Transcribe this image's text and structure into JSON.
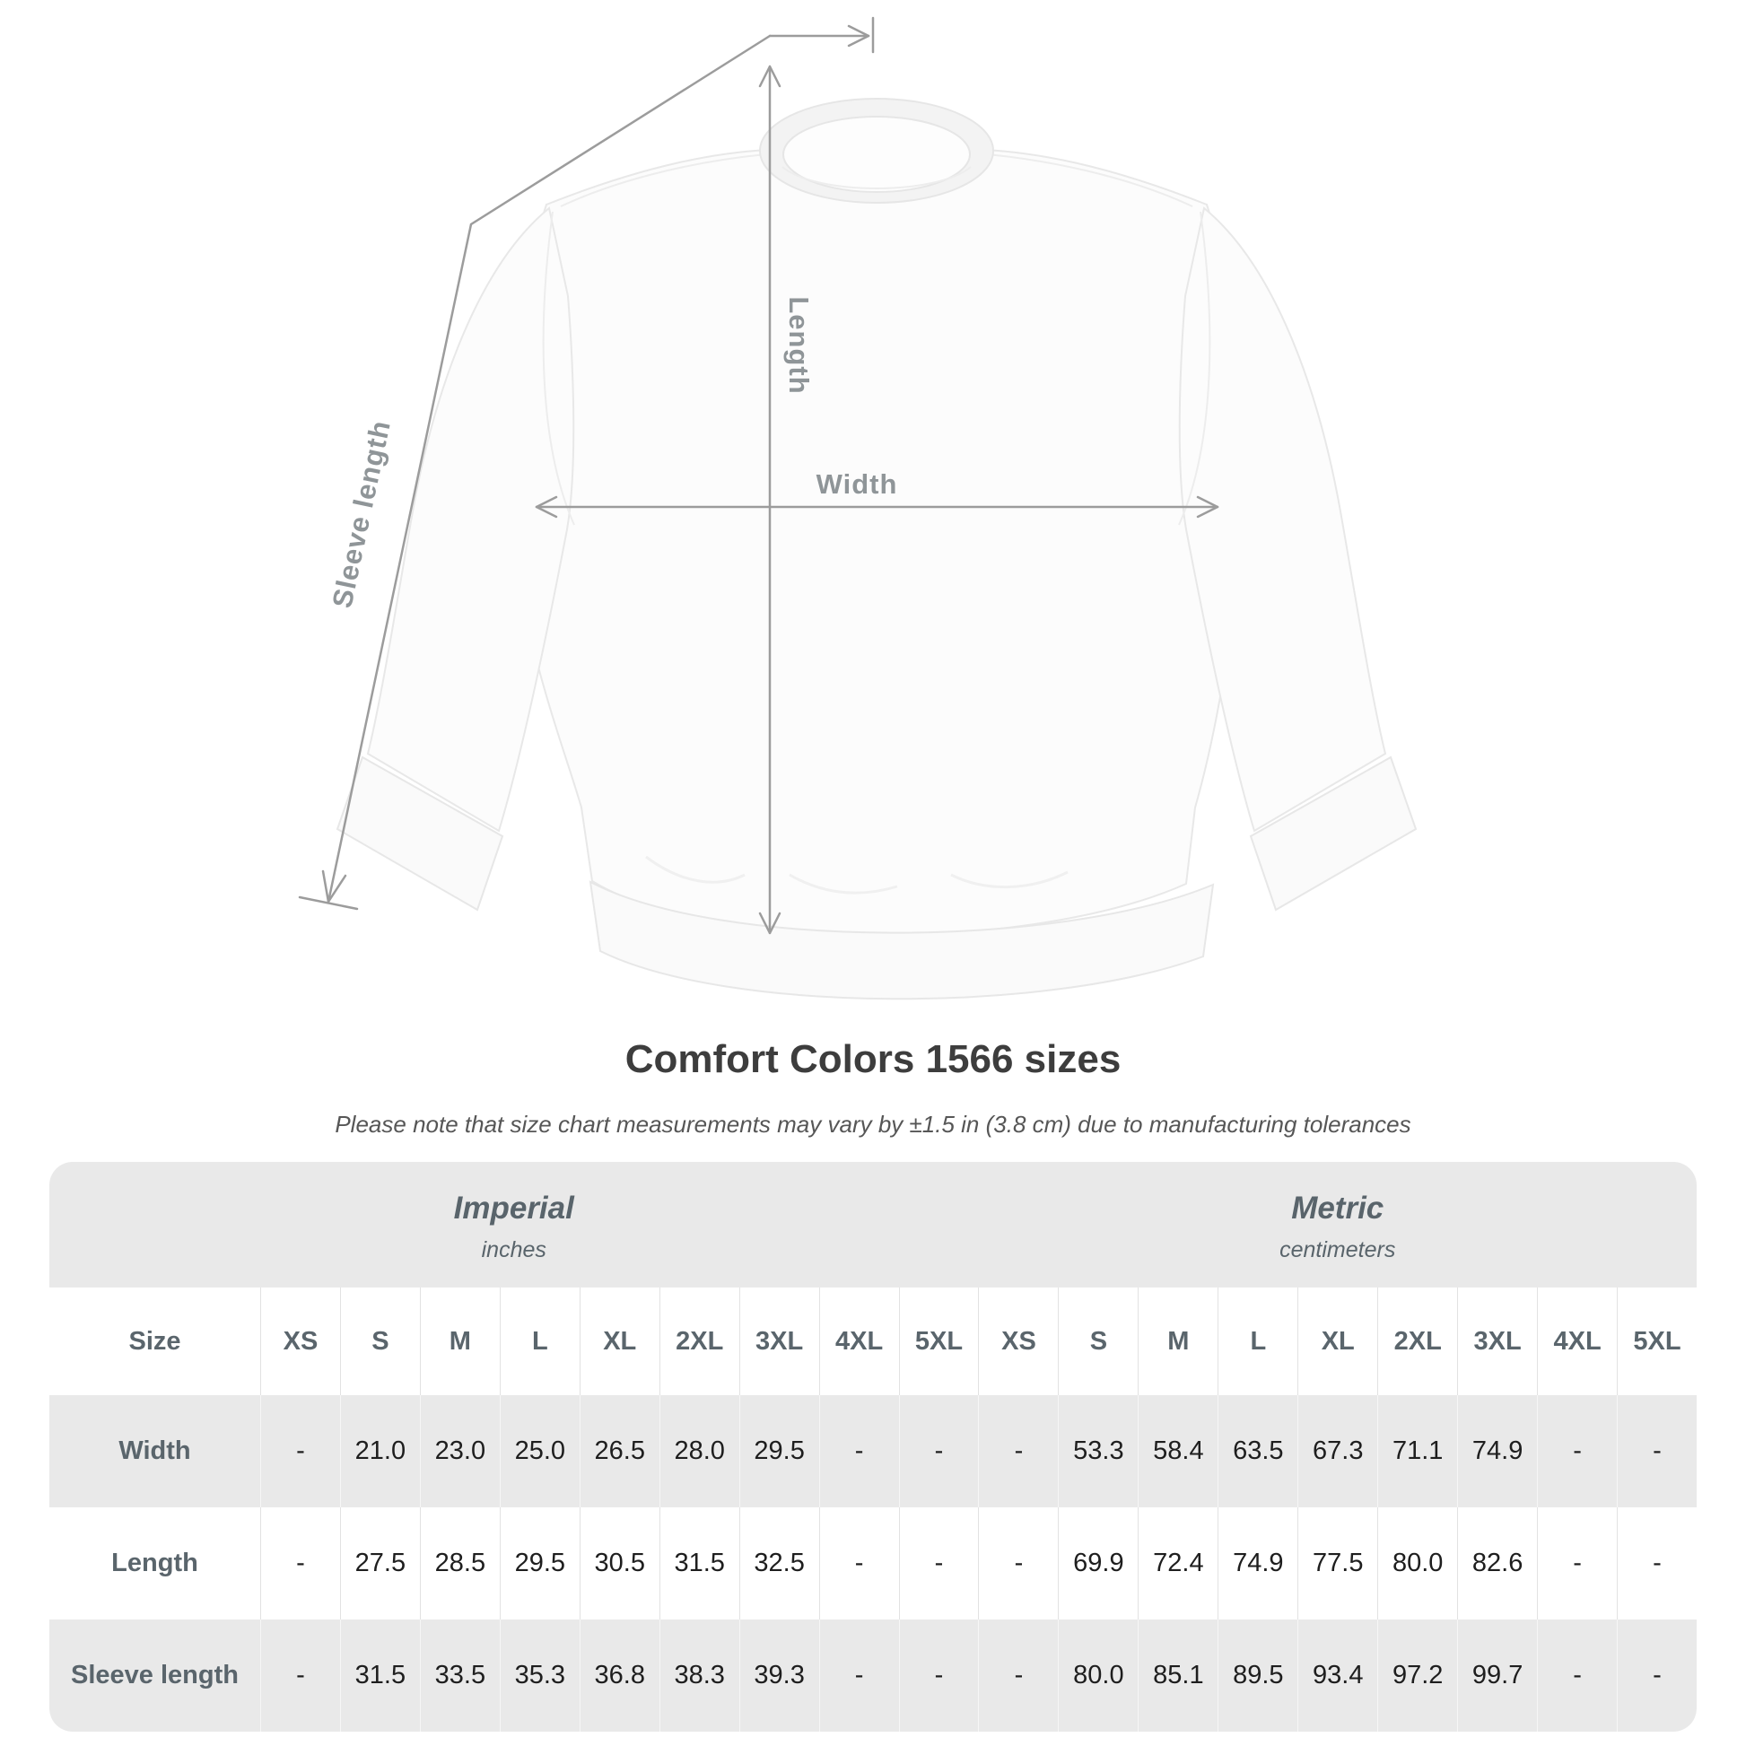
{
  "figure": {
    "labels": {
      "length": "Length",
      "width": "Width",
      "sleeve": "Sleeve length"
    },
    "line_color": "#9c9c9c",
    "label_color": "#8f9598"
  },
  "title": "Comfort Colors 1566 sizes",
  "subtitle": "Please note that size chart measurements may vary by ±1.5 in (3.8 cm) due to manufacturing tolerances",
  "table": {
    "imperial": {
      "title": "Imperial",
      "unit": "inches"
    },
    "metric": {
      "title": "Metric",
      "unit": "centimeters"
    },
    "size_label": "Size",
    "sizes": [
      "XS",
      "S",
      "M",
      "L",
      "XL",
      "2XL",
      "3XL",
      "4XL",
      "5XL"
    ],
    "rows": [
      {
        "label": "Width",
        "imperial": [
          "-",
          "21.0",
          "23.0",
          "25.0",
          "26.5",
          "28.0",
          "29.5",
          "-",
          "-"
        ],
        "metric": [
          "-",
          "53.3",
          "58.4",
          "63.5",
          "67.3",
          "71.1",
          "74.9",
          "-",
          "-"
        ]
      },
      {
        "label": "Length",
        "imperial": [
          "-",
          "27.5",
          "28.5",
          "29.5",
          "30.5",
          "31.5",
          "32.5",
          "-",
          "-"
        ],
        "metric": [
          "-",
          "69.9",
          "72.4",
          "74.9",
          "77.5",
          "80.0",
          "82.6",
          "-",
          "-"
        ]
      },
      {
        "label": "Sleeve length",
        "imperial": [
          "-",
          "31.5",
          "33.5",
          "35.3",
          "36.8",
          "38.3",
          "39.3",
          "-",
          "-"
        ],
        "metric": [
          "-",
          "80.0",
          "85.1",
          "89.5",
          "93.4",
          "97.2",
          "99.7",
          "-",
          "-"
        ]
      }
    ]
  },
  "colors": {
    "table_bg": "#e9e9e9",
    "header_text": "#5a656c",
    "value_text": "#1e1e1e",
    "title_text": "#3d3d3d"
  }
}
